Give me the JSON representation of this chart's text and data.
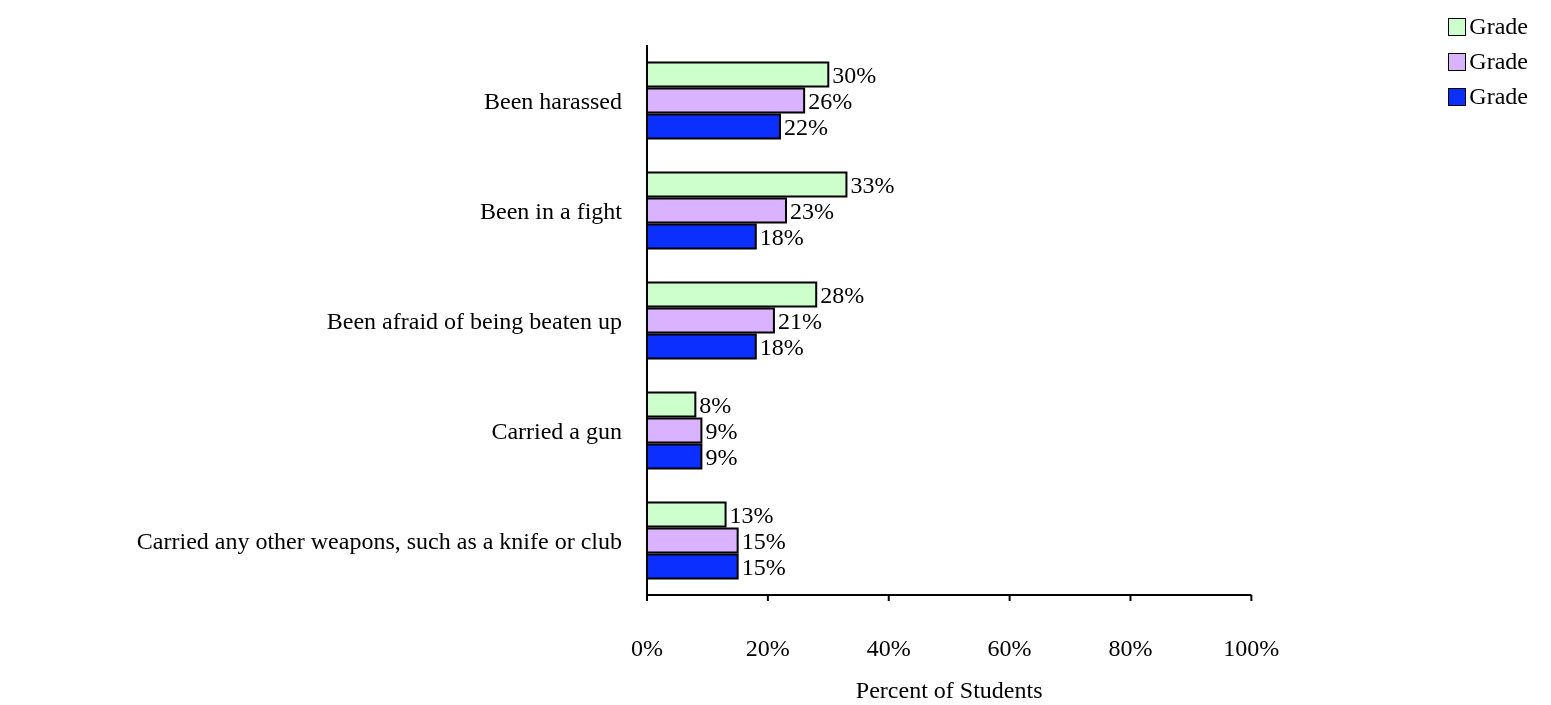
{
  "chart_data": {
    "type": "bar",
    "orientation": "horizontal",
    "xlabel": "Percent of Students",
    "categories": [
      "Been harassed",
      "Been in a fight",
      "Been afraid of being beaten up",
      "Carried a gun",
      "Carried any other weapons, such as a knife or club"
    ],
    "series": [
      {
        "name": "Grade",
        "color": "#ccffcc",
        "values": [
          30,
          33,
          28,
          8,
          13
        ],
        "value_labels": [
          "30%",
          "33%",
          "28%",
          "8%",
          "13%"
        ]
      },
      {
        "name": "Grade",
        "color": "#d9b3ff",
        "values": [
          26,
          23,
          21,
          9,
          15
        ],
        "value_labels": [
          "26%",
          "23%",
          "21%",
          "9%",
          "15%"
        ]
      },
      {
        "name": "Grade",
        "color": "#0a2fff",
        "values": [
          22,
          18,
          18,
          9,
          15
        ],
        "value_labels": [
          "22%",
          "18%",
          "18%",
          "9%",
          "15%"
        ]
      }
    ],
    "xlim": [
      0,
      100
    ],
    "xticks": [
      {
        "value": 0,
        "label": "0%"
      },
      {
        "value": 20,
        "label": "20%"
      },
      {
        "value": 40,
        "label": "40%"
      },
      {
        "value": 60,
        "label": "60%"
      },
      {
        "value": 80,
        "label": "80%"
      },
      {
        "value": 100,
        "label": "100%"
      }
    ],
    "legend": "top right",
    "grid": false
  }
}
